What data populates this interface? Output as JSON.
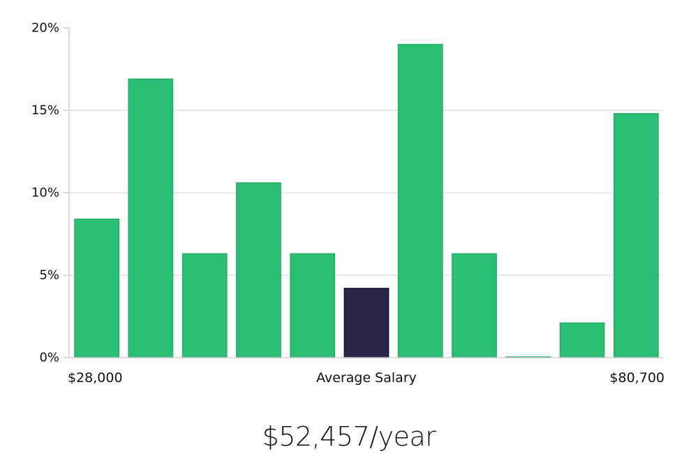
{
  "chart_data": {
    "type": "bar",
    "values": [
      8.4,
      16.9,
      6.3,
      10.6,
      6.3,
      4.2,
      19.0,
      6.3,
      0.0,
      2.1,
      14.8
    ],
    "highlight_index": 5,
    "ylim": [
      0,
      20
    ],
    "y_ticks": [
      {
        "value": 0,
        "label": "0%"
      },
      {
        "value": 5,
        "label": "5%"
      },
      {
        "value": 10,
        "label": "10%"
      },
      {
        "value": 15,
        "label": "15%"
      },
      {
        "value": 20,
        "label": "20%"
      }
    ],
    "x_min_label": "$28,000",
    "x_max_label": "$80,700",
    "xlabel": "Average Salary",
    "grid": true,
    "colors": {
      "bar": "#2bbf76",
      "bar_stroke": "#24ad69",
      "highlight": "#2a2549",
      "highlight_stroke": "#15122a",
      "grid": "#e3e3e3",
      "axis": "#cfcfcf"
    }
  },
  "summary": {
    "salary_text": "$52,457/year"
  }
}
